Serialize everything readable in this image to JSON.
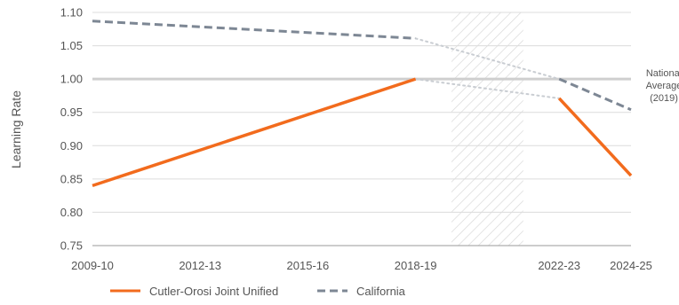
{
  "chart_data": {
    "type": "line",
    "ylabel": "Learning Rate",
    "xlabel": "",
    "ylim": [
      0.75,
      1.1
    ],
    "yticks": [
      0.75,
      0.8,
      0.85,
      0.9,
      0.95,
      1.0,
      1.05,
      1.1
    ],
    "ytick_labels": [
      "0.75",
      "0.80",
      "0.85",
      "0.90",
      "0.95",
      "1.00",
      "1.05",
      "1.10"
    ],
    "xlim": [
      2009,
      2024
    ],
    "xticks": [
      {
        "value": 2009,
        "label": "2009-10"
      },
      {
        "value": 2012,
        "label": "2012-13"
      },
      {
        "value": 2015,
        "label": "2015-16"
      },
      {
        "value": 2018,
        "label": "2018-19"
      },
      {
        "value": 2022,
        "label": "2022-23"
      },
      {
        "value": 2024,
        "label": "2024-25"
      }
    ],
    "grid": true,
    "shaded_region": {
      "from": 2019,
      "to": 2021
    },
    "reference_line": {
      "value": 1.0,
      "label_lines": [
        "National",
        "Average",
        "(2019)"
      ]
    },
    "series": [
      {
        "name": "Cutler-Orosi Joint Unified",
        "color": "#f26b1d",
        "style": "solid",
        "segments": [
          [
            {
              "x": 2009,
              "y": 0.84
            },
            {
              "x": 2018,
              "y": 1.0
            }
          ],
          [
            {
              "x": 2022,
              "y": 0.971
            },
            {
              "x": 2024,
              "y": 0.855
            }
          ]
        ],
        "gap_connector": [
          {
            "x": 2018,
            "y": 1.0
          },
          {
            "x": 2022,
            "y": 0.971
          }
        ]
      },
      {
        "name": "California",
        "color": "#7d8794",
        "style": "dashed",
        "segments": [
          [
            {
              "x": 2009,
              "y": 1.087
            },
            {
              "x": 2018,
              "y": 1.061
            }
          ],
          [
            {
              "x": 2022,
              "y": 1.0
            },
            {
              "x": 2024,
              "y": 0.954
            }
          ]
        ],
        "gap_connector": [
          {
            "x": 2018,
            "y": 1.061
          },
          {
            "x": 2022,
            "y": 1.0
          }
        ]
      }
    ],
    "legend_position": "bottom-left"
  }
}
